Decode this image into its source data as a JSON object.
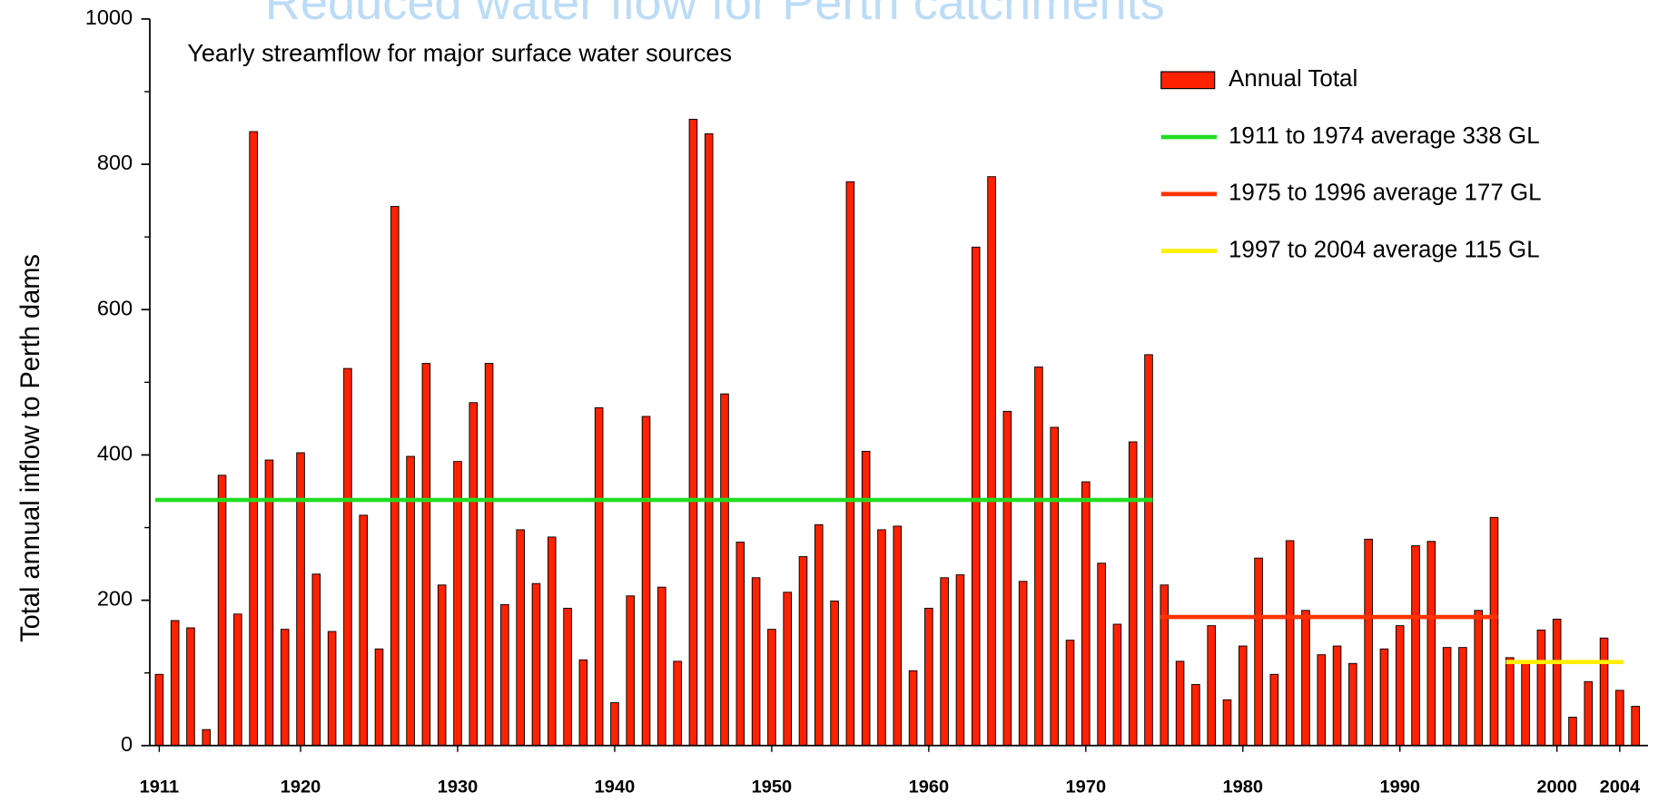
{
  "chart_data": {
    "type": "bar",
    "title": "Reduced water flow for Perth catchments",
    "subtitle": "Yearly streamflow for major surface water sources",
    "ylabel": "Total annual inflow to Perth dams",
    "x": [
      1911,
      1912,
      1913,
      1914,
      1915,
      1916,
      1917,
      1918,
      1919,
      1920,
      1921,
      1922,
      1923,
      1924,
      1925,
      1926,
      1927,
      1928,
      1929,
      1930,
      1931,
      1932,
      1933,
      1934,
      1935,
      1936,
      1937,
      1938,
      1939,
      1940,
      1941,
      1942,
      1943,
      1944,
      1945,
      1946,
      1947,
      1948,
      1949,
      1950,
      1951,
      1952,
      1953,
      1954,
      1955,
      1956,
      1957,
      1958,
      1959,
      1960,
      1961,
      1962,
      1963,
      1964,
      1965,
      1966,
      1967,
      1968,
      1969,
      1970,
      1971,
      1972,
      1973,
      1974,
      1975,
      1976,
      1977,
      1978,
      1979,
      1980,
      1981,
      1982,
      1983,
      1984,
      1985,
      1986,
      1987,
      1988,
      1989,
      1990,
      1991,
      1992,
      1993,
      1994,
      1995,
      1996,
      1997,
      1998,
      1999,
      2000,
      2001,
      2002,
      2003,
      2004,
      2005
    ],
    "series": [
      {
        "name": "Annual Total",
        "color": "#ff2200",
        "values": [
          98,
          172,
          162,
          22,
          372,
          181,
          845,
          393,
          160,
          403,
          236,
          157,
          519,
          317,
          133,
          742,
          398,
          526,
          221,
          391,
          472,
          526,
          194,
          297,
          223,
          287,
          189,
          118,
          465,
          59,
          206,
          453,
          218,
          116,
          862,
          842,
          484,
          280,
          231,
          160,
          211,
          260,
          304,
          199,
          776,
          405,
          297,
          302,
          103,
          189,
          231,
          235,
          686,
          783,
          460,
          226,
          521,
          438,
          145,
          363,
          251,
          167,
          418,
          538,
          221,
          116,
          84,
          165,
          63,
          137,
          258,
          98,
          282,
          186,
          125,
          137,
          113,
          284,
          133,
          165,
          275,
          281,
          135,
          135,
          186,
          314,
          121,
          115,
          159,
          174,
          39,
          88,
          148,
          76,
          54
        ]
      }
    ],
    "averages": [
      {
        "name": "1911 to 1974 average 338 GL",
        "value": 338,
        "from": 1911,
        "to": 1974,
        "color": "#22dd22"
      },
      {
        "name": "1975 to 1996 average 177 GL",
        "value": 177,
        "from": 1975,
        "to": 1996,
        "color": "#ff3300"
      },
      {
        "name": "1997 to 2004 average 115 GL",
        "value": 115,
        "from": 1997,
        "to": 2004,
        "color": "#ffee00"
      }
    ],
    "xlim": [
      1910.4,
      2005.8
    ],
    "xticks": [
      1911,
      1920,
      1930,
      1940,
      1950,
      1960,
      1970,
      1980,
      1990,
      2000,
      2004
    ],
    "ylim": [
      0,
      1000
    ],
    "yticks": [
      0,
      200,
      400,
      600,
      800,
      1000
    ],
    "minor_yticks": [
      100,
      300,
      500,
      700,
      900
    ],
    "legend": "upper right"
  }
}
